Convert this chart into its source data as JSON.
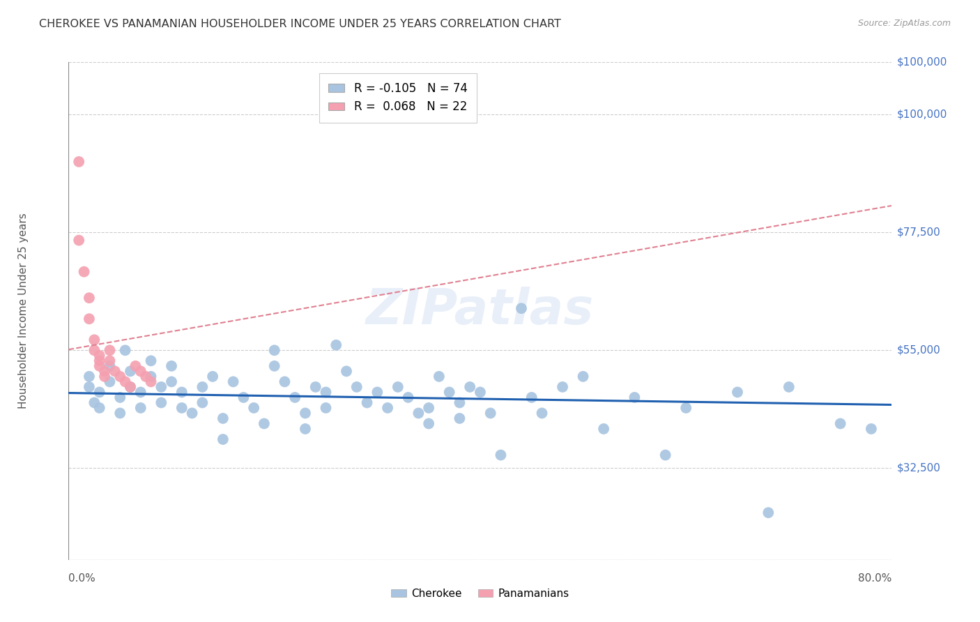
{
  "title": "CHEROKEE VS PANAMANIAN HOUSEHOLDER INCOME UNDER 25 YEARS CORRELATION CHART",
  "source": "Source: ZipAtlas.com",
  "ylabel": "Householder Income Under 25 years",
  "ytick_labels": [
    "$32,500",
    "$55,000",
    "$77,500",
    "$100,000"
  ],
  "ytick_values": [
    32500,
    55000,
    77500,
    100000
  ],
  "ymin": 15000,
  "ymax": 110000,
  "xmin": 0.0,
  "xmax": 0.8,
  "legend_cherokee": "R = -0.105   N = 74",
  "legend_panamanian": "R =  0.068   N = 22",
  "cherokee_color": "#a8c4e0",
  "panamanian_color": "#f4a0b0",
  "cherokee_line_color": "#2060b0",
  "panamanian_line_color": "#e08090",
  "cherokee_r": -0.105,
  "panamanian_r": 0.068,
  "watermark": "ZIPatlas",
  "background_color": "#ffffff",
  "grid_color": "#cccccc",
  "right_axis_label_color": "#4472c4",
  "cherokee_x": [
    0.02,
    0.02,
    0.025,
    0.03,
    0.03,
    0.04,
    0.04,
    0.05,
    0.05,
    0.055,
    0.06,
    0.06,
    0.07,
    0.07,
    0.08,
    0.08,
    0.09,
    0.09,
    0.1,
    0.1,
    0.11,
    0.11,
    0.12,
    0.13,
    0.13,
    0.14,
    0.15,
    0.15,
    0.16,
    0.17,
    0.18,
    0.19,
    0.2,
    0.2,
    0.21,
    0.22,
    0.23,
    0.23,
    0.24,
    0.25,
    0.25,
    0.26,
    0.27,
    0.28,
    0.29,
    0.3,
    0.31,
    0.32,
    0.33,
    0.34,
    0.35,
    0.35,
    0.36,
    0.37,
    0.38,
    0.38,
    0.39,
    0.4,
    0.41,
    0.42,
    0.44,
    0.45,
    0.46,
    0.48,
    0.5,
    0.52,
    0.55,
    0.58,
    0.6,
    0.65,
    0.68,
    0.7,
    0.75,
    0.78
  ],
  "cherokee_y": [
    50000,
    48000,
    45000,
    47000,
    44000,
    52000,
    49000,
    46000,
    43000,
    55000,
    51000,
    48000,
    47000,
    44000,
    53000,
    50000,
    48000,
    45000,
    52000,
    49000,
    47000,
    44000,
    43000,
    48000,
    45000,
    50000,
    42000,
    38000,
    49000,
    46000,
    44000,
    41000,
    55000,
    52000,
    49000,
    46000,
    43000,
    40000,
    48000,
    47000,
    44000,
    56000,
    51000,
    48000,
    45000,
    47000,
    44000,
    48000,
    46000,
    43000,
    44000,
    41000,
    50000,
    47000,
    45000,
    42000,
    48000,
    47000,
    43000,
    35000,
    63000,
    46000,
    43000,
    48000,
    50000,
    40000,
    46000,
    35000,
    44000,
    47000,
    24000,
    48000,
    41000,
    40000
  ],
  "panamanian_x": [
    0.01,
    0.01,
    0.015,
    0.02,
    0.02,
    0.025,
    0.025,
    0.03,
    0.03,
    0.03,
    0.035,
    0.035,
    0.04,
    0.04,
    0.045,
    0.05,
    0.055,
    0.06,
    0.065,
    0.07,
    0.075,
    0.08
  ],
  "panamanian_y": [
    91000,
    76000,
    70000,
    65000,
    61000,
    57000,
    55000,
    54000,
    53000,
    52000,
    51000,
    50000,
    55000,
    53000,
    51000,
    50000,
    49000,
    48000,
    52000,
    51000,
    50000,
    49000
  ]
}
